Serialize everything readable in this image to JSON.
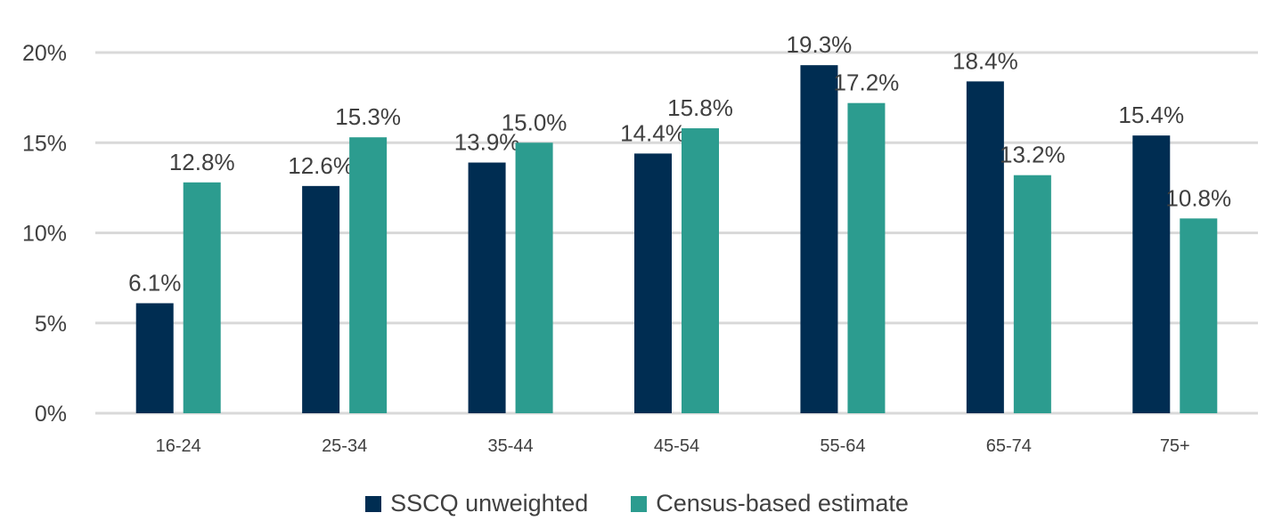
{
  "chart_data": {
    "type": "bar",
    "categories": [
      "16-24",
      "25-34",
      "35-44",
      "45-54",
      "55-64",
      "65-74",
      "75+"
    ],
    "series": [
      {
        "name": "SSCQ unweighted",
        "color": "#002D52",
        "values": [
          6.1,
          12.6,
          13.9,
          14.4,
          19.3,
          18.4,
          15.4
        ],
        "labels": [
          "6.1%",
          "12.6%",
          "13.9%",
          "14.4%",
          "19.3%",
          "18.4%",
          "15.4%"
        ]
      },
      {
        "name": "Census-based estimate",
        "color": "#2C9C8F",
        "values": [
          12.8,
          15.3,
          15.0,
          15.8,
          17.2,
          13.2,
          10.8
        ],
        "labels": [
          "12.8%",
          "15.3%",
          "15.0%",
          "15.8%",
          "17.2%",
          "13.2%",
          "10.8%"
        ]
      }
    ],
    "yticks": [
      0,
      5,
      10,
      15,
      20
    ],
    "ytick_labels": [
      "0%",
      "5%",
      "10%",
      "15%",
      "20%"
    ],
    "ylim": [
      0,
      20
    ],
    "grid": true,
    "legend_position": "bottom",
    "xlabel": "",
    "ylabel": "",
    "title": ""
  }
}
